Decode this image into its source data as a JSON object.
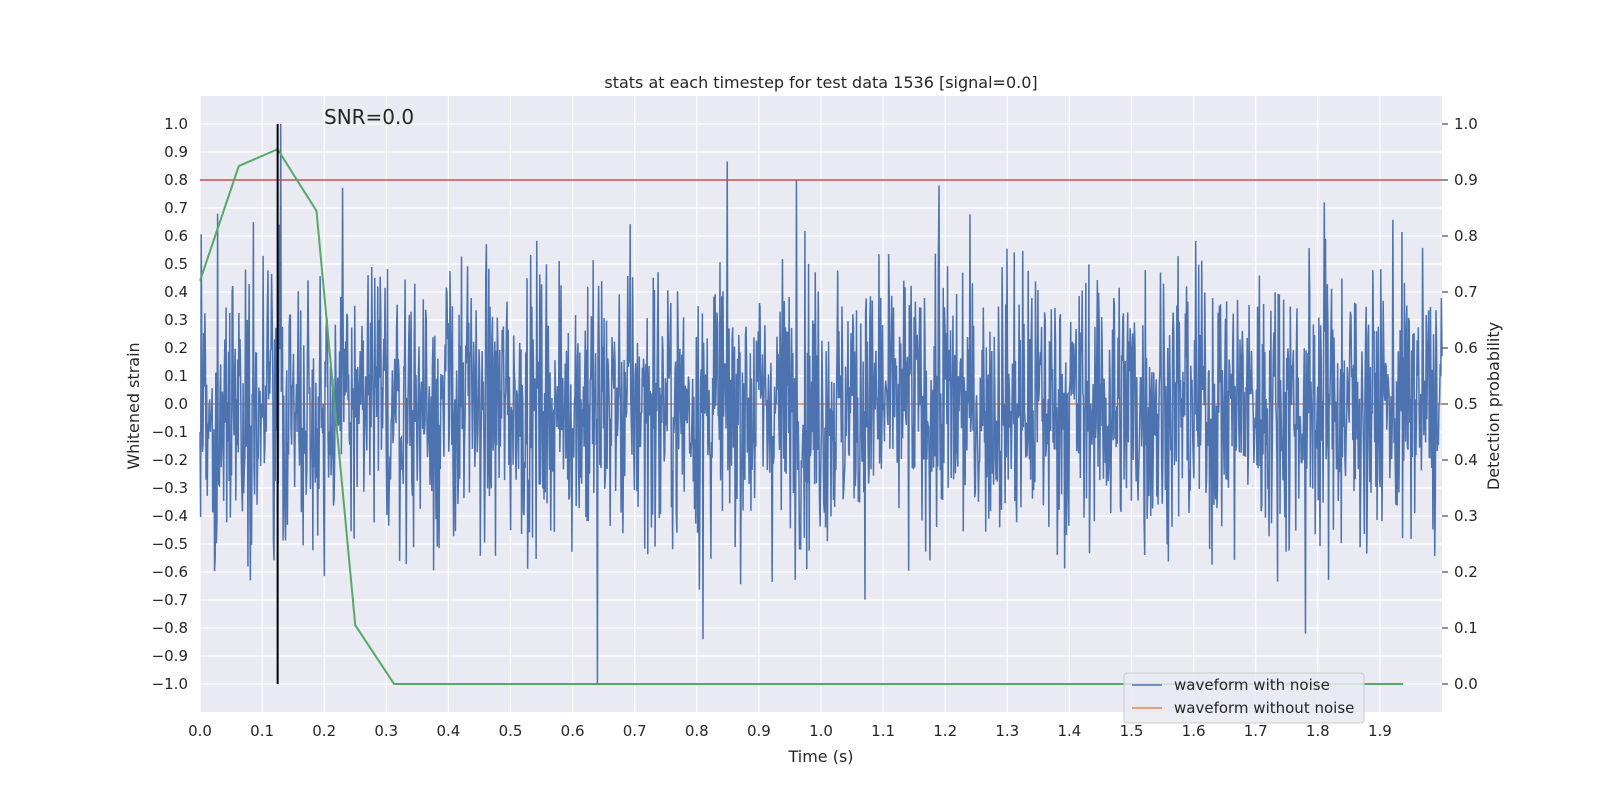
{
  "chart_data": {
    "type": "line",
    "title": "stats at each timestep for test data 1536 [signal=0.0]",
    "xlabel": "Time (s)",
    "ylabel": "Whitened strain",
    "y2label": "Detection probability",
    "xlim": [
      0.0,
      2.0
    ],
    "ylim": [
      -1.1,
      1.1
    ],
    "y2lim": [
      -0.05,
      1.05
    ],
    "xticks": [
      "0.0",
      "0.1",
      "0.2",
      "0.3",
      "0.4",
      "0.5",
      "0.6",
      "0.7",
      "0.8",
      "0.9",
      "1.0",
      "1.1",
      "1.2",
      "1.3",
      "1.4",
      "1.5",
      "1.6",
      "1.7",
      "1.8",
      "1.9"
    ],
    "yticks": [
      "1.0",
      "0.9",
      "0.8",
      "0.7",
      "0.6",
      "0.5",
      "0.4",
      "0.3",
      "0.2",
      "0.1",
      "0.0",
      "−0.1",
      "−0.2",
      "−0.3",
      "−0.4",
      "−0.5",
      "−0.6",
      "−0.7",
      "−0.8",
      "−0.9",
      "−1.0"
    ],
    "y2ticks": [
      "1.0",
      "0.9",
      "0.8",
      "0.7",
      "0.6",
      "0.5",
      "0.4",
      "0.3",
      "0.2",
      "0.1",
      "0.0"
    ],
    "grid": true,
    "legend_position": "lower-right",
    "annotation": "SNR=0.0",
    "colors": {
      "noise": "#4c72b0",
      "clean": "#dd8452",
      "prob": "#55a868",
      "threshold": "#c44e52",
      "marker": "#000000",
      "background": "#eaeaf2"
    },
    "series": [
      {
        "name": "waveform with noise",
        "x_range": [
          0.0,
          2.0
        ],
        "sample_count": 2048,
        "approx_amplitude": 0.3,
        "notable_peaks": [
          {
            "x": 0.13,
            "y": 1.0
          },
          {
            "x": 0.96,
            "y": 0.8
          },
          {
            "x": 1.19,
            "y": 0.78
          },
          {
            "x": 1.81,
            "y": 0.72
          },
          {
            "x": 0.64,
            "y": -1.0
          },
          {
            "x": 1.78,
            "y": -0.82
          },
          {
            "x": 0.81,
            "y": -0.84
          }
        ]
      },
      {
        "name": "waveform without noise",
        "x": [
          0.0,
          2.0
        ],
        "y": [
          0.0,
          0.0
        ]
      },
      {
        "axis": "secondary",
        "x": [
          0.0,
          0.0625,
          0.125,
          0.1875,
          0.25,
          0.3125,
          0.375,
          0.4375,
          0.5,
          0.75,
          1.0,
          1.25,
          1.5,
          1.75,
          1.9375
        ],
        "y": [
          0.72,
          0.925,
          0.955,
          0.845,
          0.105,
          0.0,
          0.0,
          0.0,
          0.0,
          0.0,
          0.0,
          0.0,
          0.0,
          0.0,
          0.0
        ]
      }
    ],
    "threshold": {
      "axis": "secondary",
      "value": 0.9
    },
    "marker_line": {
      "x": 0.125,
      "y_from": -1.0,
      "y_to": 1.0
    }
  }
}
